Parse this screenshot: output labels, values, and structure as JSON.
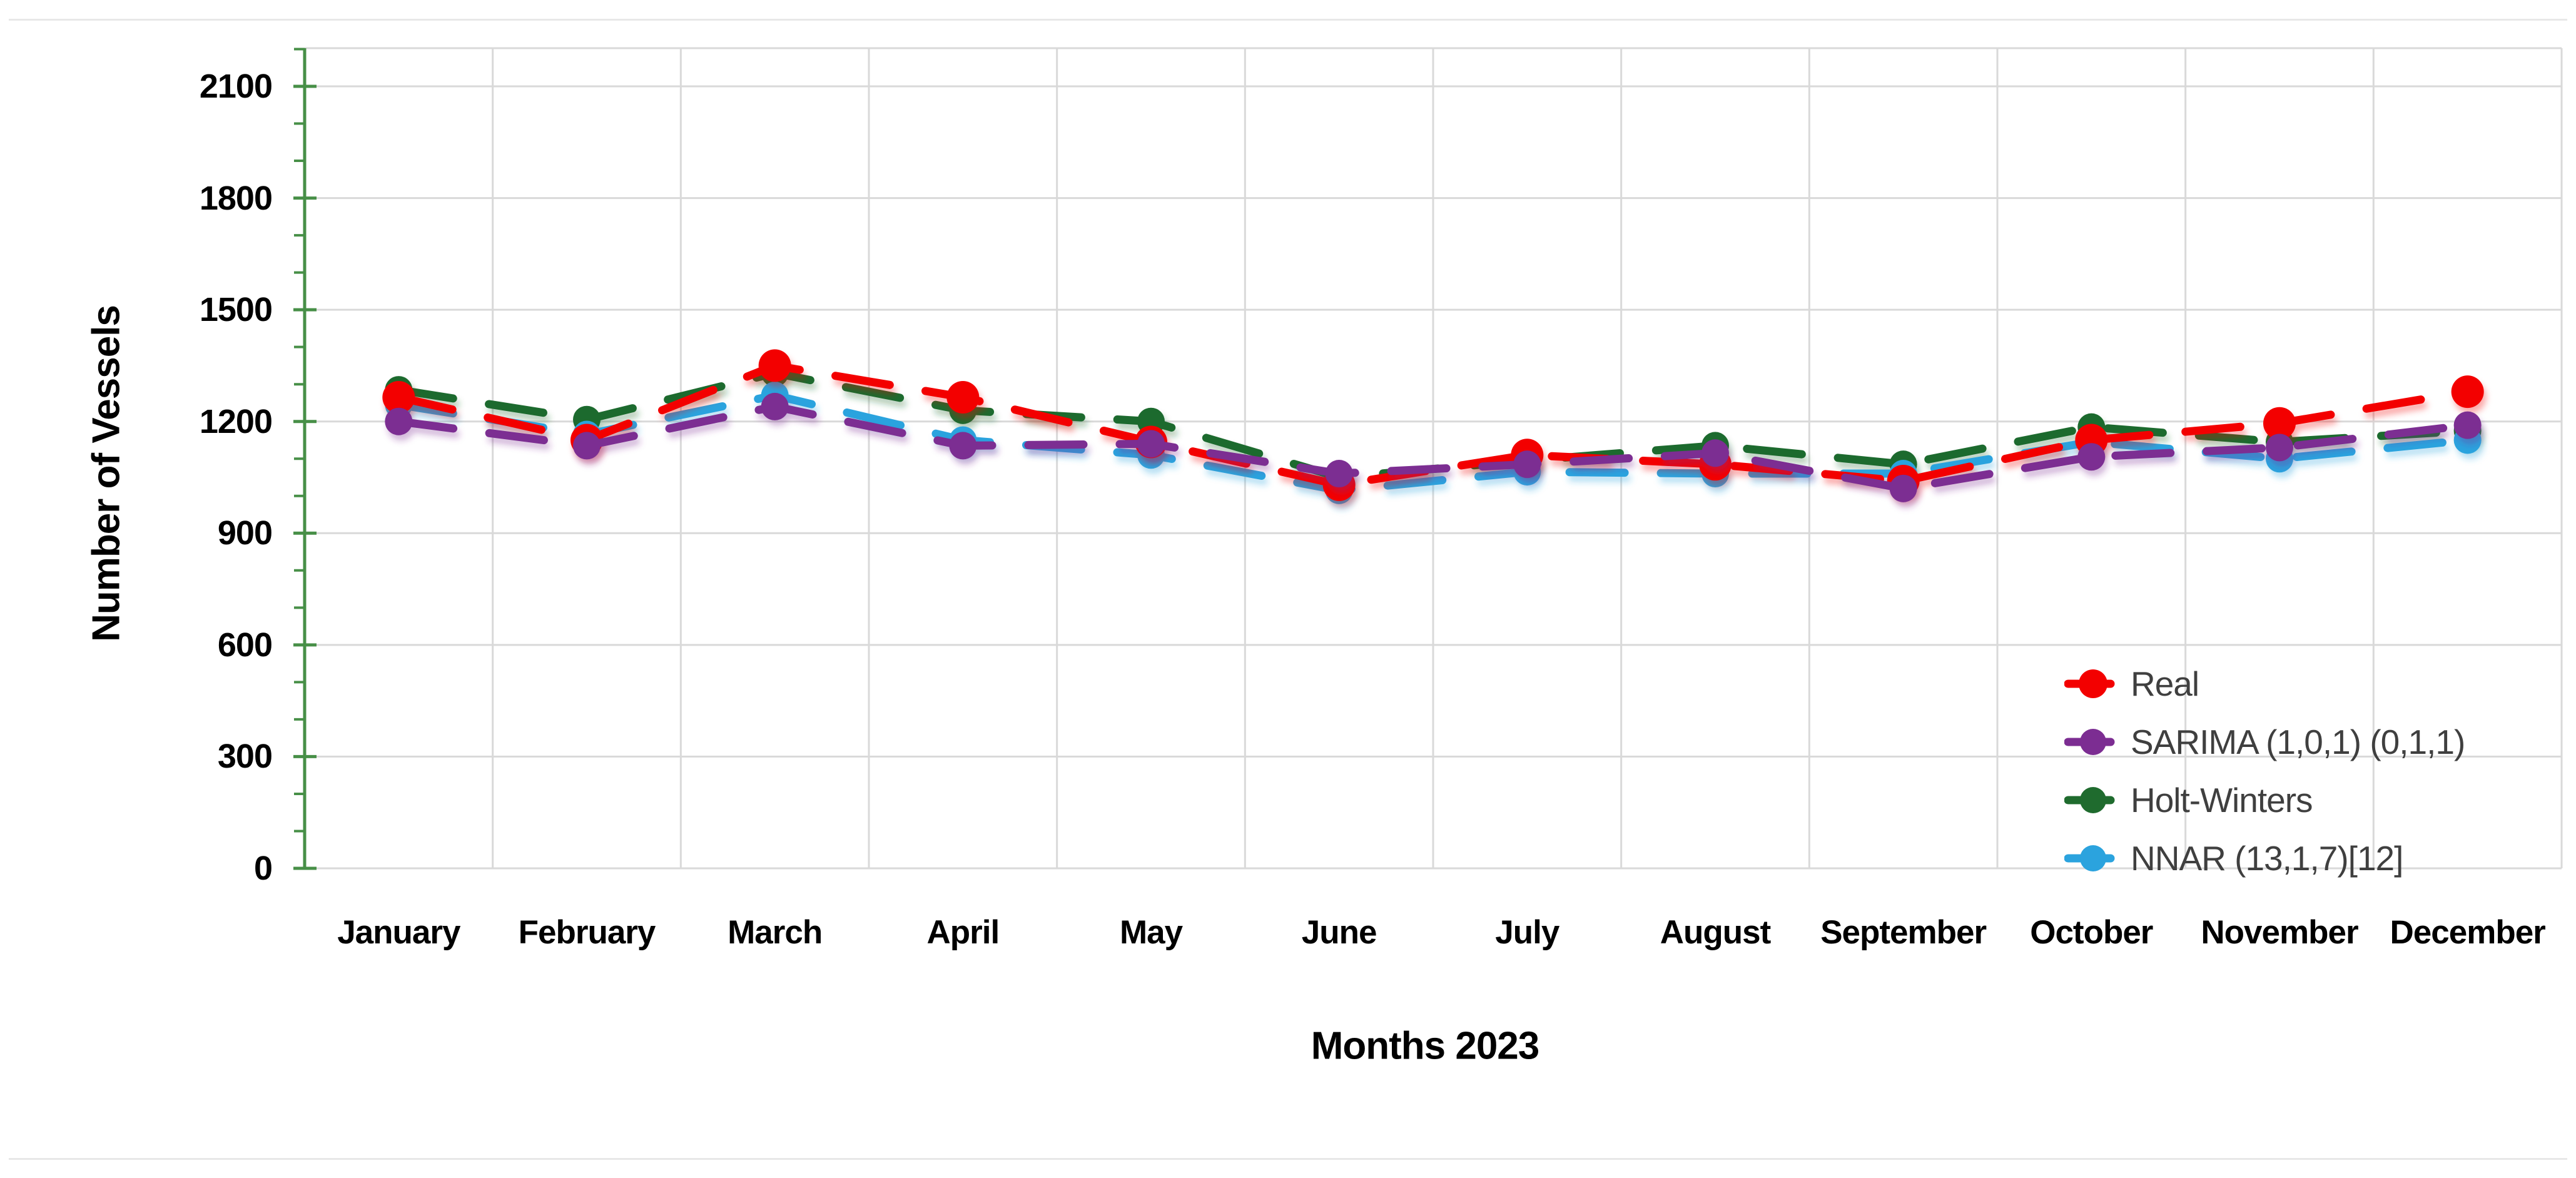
{
  "page": {
    "background": "#ffffff",
    "rule_color": "#e8e8e8"
  },
  "chart_data": {
    "type": "line",
    "title": "",
    "xlabel": "Months 2023",
    "ylabel": "Number of Vessels",
    "categories": [
      "January",
      "February",
      "March",
      "April",
      "May",
      "June",
      "July",
      "August",
      "September",
      "October",
      "November",
      "December"
    ],
    "series": [
      {
        "name": "Real",
        "color": "#f30000",
        "marker": "circle",
        "values": [
          1265,
          1150,
          1350,
          1265,
          1145,
          1030,
          1110,
          1085,
          1040,
          1150,
          1195,
          1280
        ]
      },
      {
        "name": "SARIMA (1,0,1) (0,1,1)",
        "color": "#7c2d92",
        "marker": "circle",
        "values": [
          1200,
          1135,
          1240,
          1135,
          1140,
          1060,
          1085,
          1115,
          1020,
          1105,
          1130,
          1190
        ]
      },
      {
        "name": "Holt-Winters",
        "color": "#1f6b2e",
        "marker": "circle",
        "values": [
          1285,
          1205,
          1330,
          1230,
          1200,
          1050,
          1095,
          1135,
          1085,
          1185,
          1145,
          1175
        ]
      },
      {
        "name": "NNAR (13,1,7)[12]",
        "color": "#2ba3de",
        "marker": "circle",
        "values": [
          1245,
          1165,
          1270,
          1150,
          1110,
          1015,
          1065,
          1060,
          1060,
          1145,
          1100,
          1150
        ]
      }
    ],
    "line_style": "dashed",
    "ylim": [
      0,
      2200
    ],
    "yticks": [
      0,
      300,
      600,
      900,
      1200,
      1500,
      1800,
      2100
    ],
    "minor_tick_step": 100,
    "grid": "both",
    "legend_position": "inside-bottom-right",
    "axis_color": "#478f47",
    "gridline_color": "#d9d9d9",
    "legend_text_color": "#3f3f3f",
    "label_color": "#000000"
  }
}
